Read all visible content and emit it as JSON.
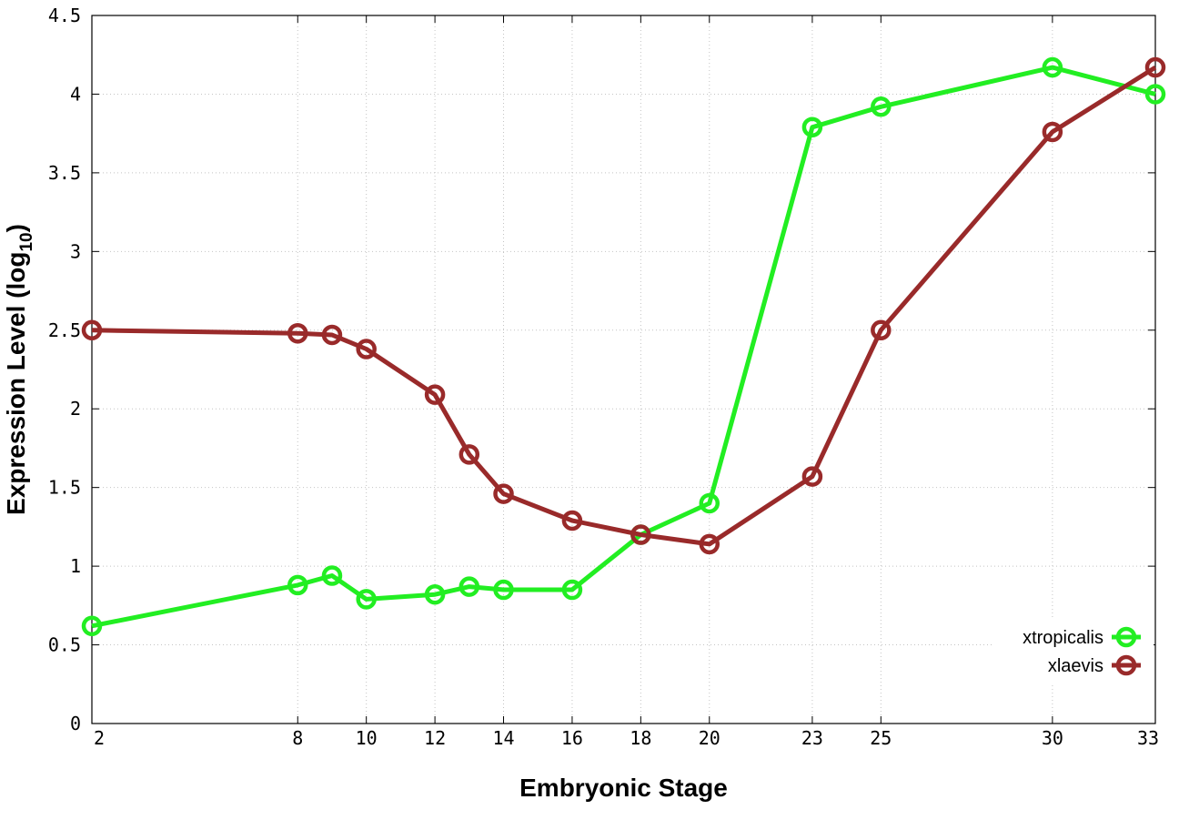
{
  "chart_data": {
    "type": "line",
    "xlabel": "Embryonic Stage",
    "ylabel": {
      "prefix": "Expression Level (log",
      "subscript": "10",
      "suffix": ")"
    },
    "x_ticks": [
      2,
      8,
      10,
      12,
      14,
      16,
      18,
      20,
      23,
      25,
      30,
      33
    ],
    "y_ticks": [
      "0",
      "0.5",
      "1",
      "1.5",
      "2",
      "2.5",
      "3",
      "3.5",
      "4",
      "4.5"
    ],
    "ylim": [
      0,
      4.5
    ],
    "grid": true,
    "legend_position": "bottom-right",
    "stage_axis": [
      {
        "stage": 2,
        "ordinal": 0
      },
      {
        "stage": 8,
        "ordinal": 6
      },
      {
        "stage": 9,
        "ordinal": 7
      },
      {
        "stage": 10,
        "ordinal": 8
      },
      {
        "stage": 12,
        "ordinal": 10
      },
      {
        "stage": 13,
        "ordinal": 11
      },
      {
        "stage": 14,
        "ordinal": 12
      },
      {
        "stage": 16,
        "ordinal": 14
      },
      {
        "stage": 18,
        "ordinal": 16
      },
      {
        "stage": 20,
        "ordinal": 18
      },
      {
        "stage": 23,
        "ordinal": 21
      },
      {
        "stage": 25,
        "ordinal": 23
      },
      {
        "stage": 30,
        "ordinal": 28
      },
      {
        "stage": 33,
        "ordinal": 31
      }
    ],
    "series": [
      {
        "name": "xtropicalis",
        "color": "#22ee22",
        "x": [
          2,
          8,
          9,
          10,
          12,
          13,
          14,
          16,
          18,
          20,
          23,
          25,
          30,
          33
        ],
        "values": [
          0.62,
          0.88,
          0.94,
          0.79,
          0.82,
          0.87,
          0.85,
          0.85,
          1.2,
          1.4,
          3.79,
          3.92,
          4.17,
          4.0
        ]
      },
      {
        "name": "xlaevis",
        "color": "#992a2a",
        "x": [
          2,
          8,
          9,
          10,
          12,
          13,
          14,
          16,
          18,
          20,
          23,
          25,
          30,
          33
        ],
        "values": [
          2.5,
          2.48,
          2.47,
          2.38,
          2.09,
          1.71,
          1.46,
          1.29,
          1.2,
          1.14,
          1.57,
          2.5,
          3.76,
          4.17
        ]
      }
    ]
  }
}
